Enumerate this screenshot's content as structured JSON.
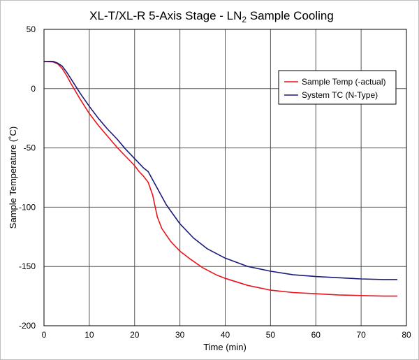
{
  "chart_data": {
    "type": "line",
    "title": {
      "prefix": "XL-T/XL-R 5-Axis Stage - LN",
      "subscript": "2",
      "suffix": " Sample Cooling"
    },
    "xlabel": "Time (min)",
    "ylabel": "Sample Temperature (˚C)",
    "xlim": [
      0,
      80
    ],
    "ylim": [
      -200,
      50
    ],
    "xticks": [
      0,
      10,
      20,
      30,
      40,
      50,
      60,
      70,
      80
    ],
    "yticks": [
      50,
      0,
      -50,
      -100,
      -150,
      -200
    ],
    "grid": true,
    "legend_position": "top-right",
    "series": [
      {
        "name": "Sample Temp (-actual)",
        "color": "#e8141c",
        "points": [
          [
            0,
            23
          ],
          [
            2,
            22.5
          ],
          [
            3,
            21
          ],
          [
            4,
            17
          ],
          [
            5,
            11
          ],
          [
            6,
            4
          ],
          [
            8,
            -9
          ],
          [
            10,
            -21
          ],
          [
            12,
            -31
          ],
          [
            14,
            -40
          ],
          [
            16,
            -49
          ],
          [
            18,
            -57
          ],
          [
            20,
            -65
          ],
          [
            21,
            -70
          ],
          [
            22,
            -74
          ],
          [
            23,
            -79
          ],
          [
            24,
            -90
          ],
          [
            25,
            -108
          ],
          [
            26,
            -118
          ],
          [
            28,
            -129
          ],
          [
            30,
            -137
          ],
          [
            32,
            -143
          ],
          [
            35,
            -151
          ],
          [
            38,
            -157
          ],
          [
            40,
            -160
          ],
          [
            45,
            -166
          ],
          [
            50,
            -170
          ],
          [
            55,
            -172
          ],
          [
            60,
            -173
          ],
          [
            65,
            -174
          ],
          [
            70,
            -174.5
          ],
          [
            75,
            -175
          ],
          [
            78,
            -175
          ]
        ]
      },
      {
        "name": "System TC (N-Type)",
        "color": "#1a1a7a",
        "points": [
          [
            0,
            23
          ],
          [
            2,
            23
          ],
          [
            3,
            21.5
          ],
          [
            4,
            19
          ],
          [
            5,
            14
          ],
          [
            6,
            8
          ],
          [
            8,
            -4
          ],
          [
            10,
            -15
          ],
          [
            12,
            -25
          ],
          [
            14,
            -34
          ],
          [
            16,
            -42
          ],
          [
            18,
            -51
          ],
          [
            20,
            -59
          ],
          [
            22,
            -67
          ],
          [
            23,
            -70
          ],
          [
            24,
            -77
          ],
          [
            25,
            -84
          ],
          [
            27,
            -98
          ],
          [
            30,
            -114
          ],
          [
            33,
            -126
          ],
          [
            36,
            -135
          ],
          [
            40,
            -143
          ],
          [
            45,
            -150
          ],
          [
            50,
            -154
          ],
          [
            55,
            -157
          ],
          [
            60,
            -158.5
          ],
          [
            65,
            -159.5
          ],
          [
            70,
            -160.5
          ],
          [
            75,
            -161
          ],
          [
            78,
            -161
          ]
        ]
      }
    ]
  }
}
